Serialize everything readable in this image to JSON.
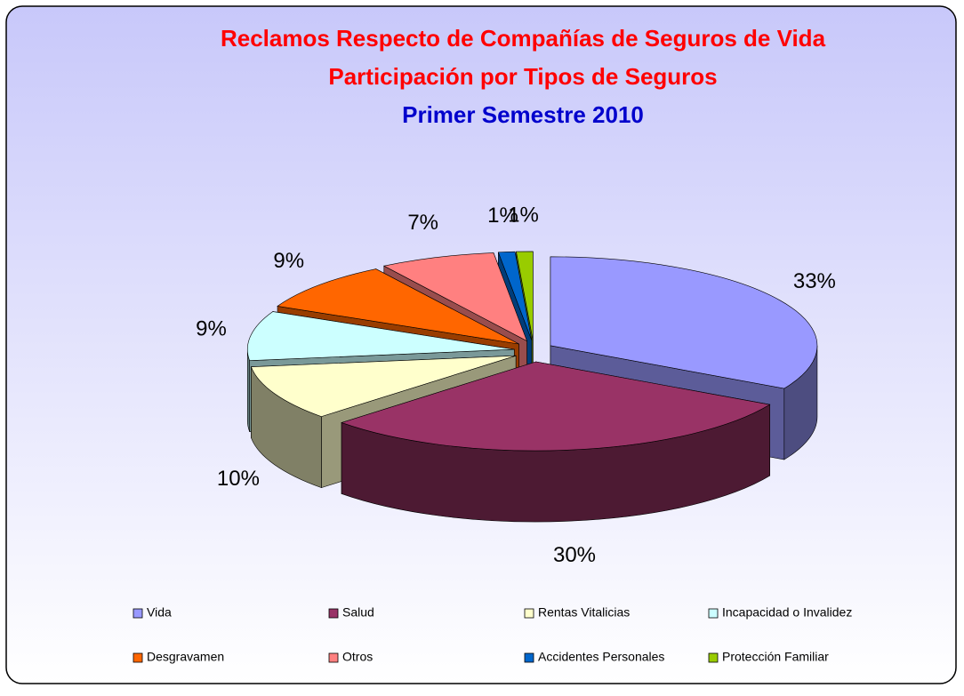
{
  "chart_data": {
    "type": "pie",
    "title": [
      "Reclamos Respecto de Compañías de Seguros de Vida",
      "Participación por Tipos de Seguros"
    ],
    "subtitle": "Primer Semestre 2010",
    "categories": [
      "Vida",
      "Salud",
      "Rentas Vitalicias",
      "Incapacidad o Invalidez",
      "Desgravamen",
      "Otros",
      "Accidentes Personales",
      "Protección Familiar"
    ],
    "values": [
      33,
      30,
      10,
      9,
      9,
      7,
      1,
      1
    ],
    "value_labels": [
      "33%",
      "30%",
      "10%",
      "9%",
      "9%",
      "7%",
      "1%",
      "1%"
    ],
    "colors": [
      "#9999ff",
      "#993366",
      "#ffffcc",
      "#ccffff",
      "#ff6600",
      "#ff8080",
      "#0066cc",
      "#99cc00"
    ],
    "legend": "bottom"
  }
}
